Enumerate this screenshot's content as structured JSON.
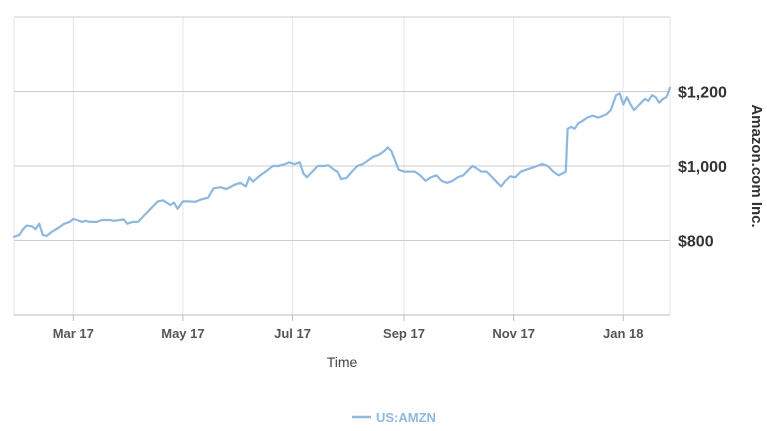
{
  "chart_data": {
    "type": "line",
    "xlabel": "Time",
    "ylabel": "Amazon.com Inc.",
    "ylim": [
      600,
      1400
    ],
    "y_ticks": [
      800,
      1000,
      1200
    ],
    "y_tick_labels": [
      "$800",
      "$1,000",
      "$1,200"
    ],
    "x_range": [
      "2017-01-27",
      "2018-01-27"
    ],
    "x_ticks": [
      {
        "date": "2017-03-01",
        "label": "Mar 17"
      },
      {
        "date": "2017-05-01",
        "label": "May 17"
      },
      {
        "date": "2017-07-01",
        "label": "Jul 17"
      },
      {
        "date": "2017-09-01",
        "label": "Sep 17"
      },
      {
        "date": "2017-11-01",
        "label": "Nov 17"
      },
      {
        "date": "2018-01-01",
        "label": "Jan 18"
      }
    ],
    "grid": true,
    "legend_position": "bottom",
    "series": [
      {
        "name": "US:AMZN",
        "color": "#8fb8de",
        "points": [
          [
            "2017-01-27",
            810
          ],
          [
            "2017-01-30",
            815
          ],
          [
            "2017-02-01",
            830
          ],
          [
            "2017-02-03",
            840
          ],
          [
            "2017-02-06",
            838
          ],
          [
            "2017-02-08",
            830
          ],
          [
            "2017-02-10",
            845
          ],
          [
            "2017-02-12",
            815
          ],
          [
            "2017-02-14",
            812
          ],
          [
            "2017-02-17",
            823
          ],
          [
            "2017-02-21",
            835
          ],
          [
            "2017-02-24",
            845
          ],
          [
            "2017-02-27",
            850
          ],
          [
            "2017-03-01",
            858
          ],
          [
            "2017-03-03",
            855
          ],
          [
            "2017-03-06",
            850
          ],
          [
            "2017-03-08",
            853
          ],
          [
            "2017-03-10",
            850
          ],
          [
            "2017-03-14",
            850
          ],
          [
            "2017-03-17",
            855
          ],
          [
            "2017-03-21",
            855
          ],
          [
            "2017-03-24",
            853
          ],
          [
            "2017-03-27",
            855
          ],
          [
            "2017-03-29",
            857
          ],
          [
            "2017-03-31",
            845
          ],
          [
            "2017-04-03",
            850
          ],
          [
            "2017-04-06",
            850
          ],
          [
            "2017-04-10",
            870
          ],
          [
            "2017-04-13",
            885
          ],
          [
            "2017-04-17",
            905
          ],
          [
            "2017-04-20",
            908
          ],
          [
            "2017-04-24",
            895
          ],
          [
            "2017-04-26",
            902
          ],
          [
            "2017-04-28",
            885
          ],
          [
            "2017-05-01",
            905
          ],
          [
            "2017-05-04",
            905
          ],
          [
            "2017-05-08",
            904
          ],
          [
            "2017-05-11",
            910
          ],
          [
            "2017-05-15",
            915
          ],
          [
            "2017-05-18",
            940
          ],
          [
            "2017-05-22",
            943
          ],
          [
            "2017-05-25",
            938
          ],
          [
            "2017-05-30",
            950
          ],
          [
            "2017-06-02",
            955
          ],
          [
            "2017-06-05",
            945
          ],
          [
            "2017-06-07",
            970
          ],
          [
            "2017-06-09",
            958
          ],
          [
            "2017-06-13",
            975
          ],
          [
            "2017-06-16",
            985
          ],
          [
            "2017-06-20",
            1000
          ],
          [
            "2017-06-23",
            1000
          ],
          [
            "2017-06-27",
            1005
          ],
          [
            "2017-06-29",
            1010
          ],
          [
            "2017-07-02",
            1005
          ],
          [
            "2017-07-05",
            1010
          ],
          [
            "2017-07-07",
            980
          ],
          [
            "2017-07-09",
            970
          ],
          [
            "2017-07-12",
            985
          ],
          [
            "2017-07-15",
            1000
          ],
          [
            "2017-07-18",
            1000
          ],
          [
            "2017-07-21",
            1002
          ],
          [
            "2017-07-24",
            990
          ],
          [
            "2017-07-26",
            985
          ],
          [
            "2017-07-28",
            965
          ],
          [
            "2017-07-31",
            968
          ],
          [
            "2017-08-03",
            985
          ],
          [
            "2017-08-06",
            1000
          ],
          [
            "2017-08-09",
            1005
          ],
          [
            "2017-08-12",
            1015
          ],
          [
            "2017-08-15",
            1025
          ],
          [
            "2017-08-18",
            1030
          ],
          [
            "2017-08-21",
            1040
          ],
          [
            "2017-08-23",
            1050
          ],
          [
            "2017-08-25",
            1040
          ],
          [
            "2017-08-27",
            1015
          ],
          [
            "2017-08-29",
            990
          ],
          [
            "2017-09-01",
            985
          ],
          [
            "2017-09-04",
            985
          ],
          [
            "2017-09-07",
            985
          ],
          [
            "2017-09-10",
            975
          ],
          [
            "2017-09-13",
            960
          ],
          [
            "2017-09-16",
            970
          ],
          [
            "2017-09-19",
            975
          ],
          [
            "2017-09-22",
            960
          ],
          [
            "2017-09-25",
            955
          ],
          [
            "2017-09-28",
            960
          ],
          [
            "2017-10-01",
            970
          ],
          [
            "2017-10-04",
            975
          ],
          [
            "2017-10-07",
            990
          ],
          [
            "2017-10-09",
            1000
          ],
          [
            "2017-10-11",
            995
          ],
          [
            "2017-10-14",
            985
          ],
          [
            "2017-10-17",
            985
          ],
          [
            "2017-10-20",
            970
          ],
          [
            "2017-10-23",
            955
          ],
          [
            "2017-10-25",
            945
          ],
          [
            "2017-10-27",
            958
          ],
          [
            "2017-10-30",
            972
          ],
          [
            "2017-11-02",
            970
          ],
          [
            "2017-11-05",
            985
          ],
          [
            "2017-11-08",
            990
          ],
          [
            "2017-11-11",
            995
          ],
          [
            "2017-11-14",
            1000
          ],
          [
            "2017-11-17",
            1005
          ],
          [
            "2017-11-20",
            1000
          ],
          [
            "2017-11-23",
            985
          ],
          [
            "2017-11-26",
            975
          ],
          [
            "2017-11-28",
            980
          ],
          [
            "2017-11-30",
            985
          ],
          [
            "2017-12-01",
            1100
          ],
          [
            "2017-12-03",
            1105
          ],
          [
            "2017-12-05",
            1100
          ],
          [
            "2017-12-07",
            1115
          ],
          [
            "2017-12-09",
            1120
          ],
          [
            "2017-12-12",
            1130
          ],
          [
            "2017-12-15",
            1135
          ],
          [
            "2017-12-18",
            1130
          ],
          [
            "2017-12-21",
            1135
          ],
          [
            "2017-12-23",
            1140
          ],
          [
            "2017-12-25",
            1150
          ],
          [
            "2017-12-28",
            1190
          ],
          [
            "2017-12-30",
            1195
          ],
          [
            "2018-01-01",
            1165
          ],
          [
            "2018-01-03",
            1185
          ],
          [
            "2018-01-05",
            1165
          ],
          [
            "2018-01-07",
            1150
          ],
          [
            "2018-01-09",
            1160
          ],
          [
            "2018-01-11",
            1170
          ],
          [
            "2018-01-13",
            1180
          ],
          [
            "2018-01-15",
            1175
          ],
          [
            "2018-01-17",
            1190
          ],
          [
            "2018-01-19",
            1185
          ],
          [
            "2018-01-21",
            1170
          ],
          [
            "2018-01-23",
            1180
          ],
          [
            "2018-01-25",
            1185
          ],
          [
            "2018-01-27",
            1210
          ]
        ]
      }
    ]
  }
}
